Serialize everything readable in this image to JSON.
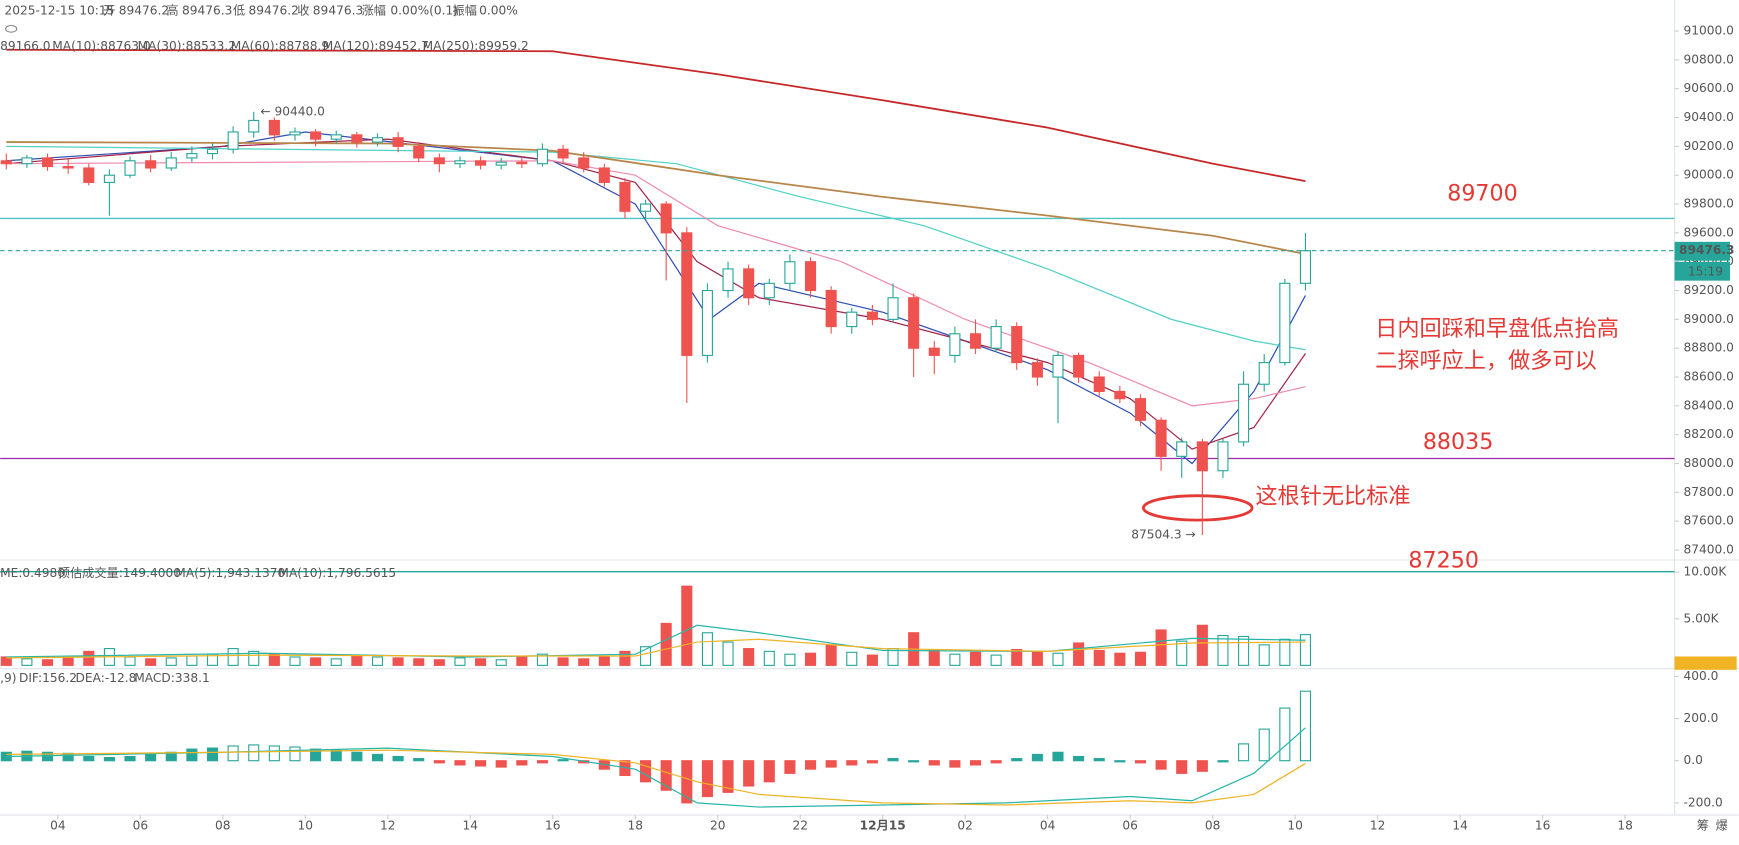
{
  "header": {
    "datetime": "2025-12-15 10:15",
    "fields": [
      {
        "label": "开",
        "value": "89476.2"
      },
      {
        "label": "高",
        "value": "89476.3"
      },
      {
        "label": "低",
        "value": "89476.2"
      },
      {
        "label": "收",
        "value": "89476.3"
      },
      {
        "label": "涨幅",
        "value": "0.00%(0.1)"
      },
      {
        "label": "振幅",
        "value": "0.00%"
      }
    ]
  },
  "notes": [
    "日内回踩和早盘低点抬高",
    "二探呼应上，做多可以",
    "这根针无比标准"
  ],
  "footer_icons": [
    "筹",
    "爆"
  ],
  "chart_data": [
    {
      "type": "candlestick",
      "x": [
        -1.25,
        -0.75,
        -0.25,
        0.25,
        0.75,
        1.25,
        1.75,
        2.25,
        2.75,
        3.25,
        3.75,
        4.25,
        4.75,
        5.25,
        5.75,
        6.25,
        6.75,
        7.25,
        7.75,
        8.25,
        8.75,
        9.25,
        9.75,
        10.25,
        10.75,
        11.25,
        11.75,
        12.25,
        12.75,
        13.25,
        13.75,
        14.25,
        14.75,
        15.25,
        15.75,
        16.25,
        16.75,
        17.25,
        17.75,
        18.25,
        18.75,
        19.25,
        19.75,
        20.25,
        20.75,
        21.25,
        21.75,
        22.25,
        22.75,
        23.25,
        23.75,
        24.25,
        24.75,
        25.25,
        25.75,
        26.25,
        26.75,
        27.25,
        27.75,
        28.25,
        28.75,
        29.25,
        29.75,
        30.25
      ],
      "ohlc": [
        [
          90100,
          90150,
          90040,
          90080
        ],
        [
          90080,
          90140,
          90050,
          90120
        ],
        [
          90120,
          90150,
          90030,
          90060
        ],
        [
          90060,
          90110,
          90010,
          90050
        ],
        [
          90050,
          90080,
          89930,
          89950
        ],
        [
          89950,
          90040,
          89720,
          90000
        ],
        [
          90000,
          90130,
          89980,
          90100
        ],
        [
          90100,
          90140,
          90020,
          90050
        ],
        [
          90050,
          90160,
          90030,
          90120
        ],
        [
          90120,
          90200,
          90090,
          90150
        ],
        [
          90150,
          90220,
          90110,
          90180
        ],
        [
          90180,
          90340,
          90150,
          90300
        ],
        [
          90300,
          90440,
          90260,
          90380
        ],
        [
          90380,
          90400,
          90240,
          90280
        ],
        [
          90280,
          90330,
          90240,
          90300
        ],
        [
          90300,
          90320,
          90200,
          90250
        ],
        [
          90250,
          90310,
          90220,
          90280
        ],
        [
          90280,
          90300,
          90190,
          90230
        ],
        [
          90230,
          90290,
          90200,
          90260
        ],
        [
          90260,
          90300,
          90160,
          90200
        ],
        [
          90200,
          90230,
          90090,
          90120
        ],
        [
          90120,
          90150,
          90020,
          90080
        ],
        [
          90080,
          90130,
          90050,
          90100
        ],
        [
          90100,
          90130,
          90040,
          90070
        ],
        [
          90070,
          90120,
          90040,
          90090
        ],
        [
          90090,
          90130,
          90050,
          90080
        ],
        [
          90080,
          90220,
          90060,
          90180
        ],
        [
          90180,
          90210,
          90090,
          90120
        ],
        [
          90120,
          90160,
          90020,
          90050
        ],
        [
          90050,
          90080,
          89920,
          89950
        ],
        [
          89950,
          89980,
          89700,
          89750
        ],
        [
          89750,
          89830,
          89700,
          89800
        ],
        [
          89800,
          89820,
          89270,
          89600
        ],
        [
          89600,
          89640,
          88420,
          88750
        ],
        [
          88750,
          89250,
          88700,
          89200
        ],
        [
          89200,
          89400,
          89150,
          89350
        ],
        [
          89350,
          89380,
          89100,
          89150
        ],
        [
          89150,
          89280,
          89100,
          89250
        ],
        [
          89250,
          89450,
          89200,
          89400
        ],
        [
          89400,
          89430,
          89150,
          89200
        ],
        [
          89200,
          89230,
          88900,
          88950
        ],
        [
          88950,
          89080,
          88900,
          89050
        ],
        [
          89050,
          89100,
          88960,
          89000
        ],
        [
          89000,
          89250,
          88980,
          89150
        ],
        [
          89150,
          89180,
          88600,
          88800
        ],
        [
          88800,
          88850,
          88620,
          88750
        ],
        [
          88750,
          88950,
          88700,
          88900
        ],
        [
          88900,
          89000,
          88760,
          88800
        ],
        [
          88800,
          89000,
          88770,
          88950
        ],
        [
          88950,
          88980,
          88650,
          88700
        ],
        [
          88700,
          88730,
          88540,
          88600
        ],
        [
          88600,
          88780,
          88280,
          88750
        ],
        [
          88750,
          88770,
          88560,
          88600
        ],
        [
          88600,
          88640,
          88470,
          88500
        ],
        [
          88500,
          88540,
          88420,
          88450
        ],
        [
          88450,
          88480,
          88260,
          88300
        ],
        [
          88300,
          88320,
          87950,
          88050
        ],
        [
          88050,
          88180,
          87900,
          88150
        ],
        [
          88150,
          88170,
          87504.3,
          87950
        ],
        [
          87950,
          88170,
          87900,
          88150
        ],
        [
          88150,
          88640,
          88120,
          88550
        ],
        [
          88550,
          88760,
          88500,
          88700
        ],
        [
          88700,
          89280,
          88680,
          89250
        ],
        [
          89250,
          89600,
          89200,
          89476.3
        ]
      ],
      "up_color": "#26a69a",
      "down_color": "#ef5350",
      "xlim": [
        -1.4,
        39.2
      ],
      "xticks": [
        {
          "value": 0,
          "label": "04"
        },
        {
          "value": 2,
          "label": "06"
        },
        {
          "value": 4,
          "label": "08"
        },
        {
          "value": 6,
          "label": "10"
        },
        {
          "value": 8,
          "label": "12"
        },
        {
          "value": 10,
          "label": "14"
        },
        {
          "value": 12,
          "label": "16"
        },
        {
          "value": 14,
          "label": "18"
        },
        {
          "value": 16,
          "label": "20"
        },
        {
          "value": 18,
          "label": "22"
        },
        {
          "value": 20,
          "label": "12月15"
        },
        {
          "value": 22,
          "label": "02"
        },
        {
          "value": 24,
          "label": "04"
        },
        {
          "value": 26,
          "label": "06"
        },
        {
          "value": 28,
          "label": "08"
        },
        {
          "value": 30,
          "label": "10"
        },
        {
          "value": 32,
          "label": "12"
        },
        {
          "value": 34,
          "label": "14"
        },
        {
          "value": 36,
          "label": "16"
        },
        {
          "value": 38,
          "label": "18"
        }
      ],
      "ylim": [
        87400,
        91000
      ],
      "yticks": [
        {
          "value": 91000,
          "label": "91000.0"
        },
        {
          "value": 90800,
          "label": "90800.0"
        },
        {
          "value": 90600,
          "label": "90600.0"
        },
        {
          "value": 90400,
          "label": "90400.0"
        },
        {
          "value": 90200,
          "label": "90200.0"
        },
        {
          "value": 90000,
          "label": "90000.0"
        },
        {
          "value": 89800,
          "label": "89800.0"
        },
        {
          "value": 89600,
          "label": "89600.0"
        },
        {
          "value": 89400,
          "label": "89400.0"
        },
        {
          "value": 89200,
          "label": "89200.0"
        },
        {
          "value": 89000,
          "label": "89000.0"
        },
        {
          "value": 88800,
          "label": "88800.0"
        },
        {
          "value": 88600,
          "label": "88600.0"
        },
        {
          "value": 88400,
          "label": "88400.0"
        },
        {
          "value": 88200,
          "label": "88200.0"
        },
        {
          "value": 88000,
          "label": "88000.0"
        },
        {
          "value": 87800,
          "label": "87800.0"
        },
        {
          "value": 87600,
          "label": "87600.0"
        },
        {
          "value": 87400,
          "label": "87400.0"
        }
      ],
      "series": [
        {
          "name": "89166.0",
          "color": "#2f4fb5",
          "x": [
            -1.25,
            4,
            6,
            12,
            14,
            15.8,
            17,
            20,
            22,
            24,
            26,
            27.5,
            29,
            30.25
          ],
          "values": [
            90100,
            90200,
            90300,
            90100,
            89800,
            89000,
            89250,
            89050,
            88850,
            88650,
            88350,
            88000,
            88500,
            89166
          ]
        },
        {
          "name": "MA(10):88763.0",
          "color": "#a3244a",
          "x": [
            -1.25,
            4,
            8,
            12,
            14,
            15.5,
            17,
            20,
            22,
            24,
            26,
            27.5,
            29,
            30.25
          ],
          "values": [
            90080,
            90200,
            90250,
            90100,
            89950,
            89400,
            89150,
            89000,
            88850,
            88700,
            88450,
            88100,
            88250,
            88763
          ]
        },
        {
          "name": "MA(30):88533.2",
          "color": "#f08bb0",
          "x": [
            -1.25,
            12,
            14,
            16,
            19,
            22,
            25,
            27.5,
            29,
            30.25
          ],
          "values": [
            90080,
            90100,
            90000,
            89650,
            89400,
            89000,
            88700,
            88400,
            88450,
            88533
          ]
        },
        {
          "name": "MA(60):88788.9",
          "color": "#4fd1c5",
          "x": [
            -1.25,
            12,
            15,
            18,
            21,
            24,
            27,
            29,
            30.25
          ],
          "values": [
            90200,
            90160,
            90080,
            89850,
            89650,
            89350,
            89000,
            88850,
            88789
          ]
        },
        {
          "name": "MA(120):89452.7",
          "color": "#b8864b",
          "x": [
            -1.25,
            8,
            12,
            16,
            20,
            24,
            28,
            30.25
          ],
          "values": [
            90230,
            90220,
            90170,
            90000,
            89850,
            89720,
            89580,
            89453
          ]
        },
        {
          "name": "MA(250):89959.2",
          "color": "#c62828",
          "x": [
            -1.25,
            12,
            16,
            20,
            24,
            28,
            30.25
          ],
          "values": [
            90870,
            90860,
            90700,
            90520,
            90330,
            90080,
            89959
          ]
        }
      ],
      "levels": [
        {
          "value": 89700,
          "color": "#4fc3c3"
        },
        {
          "value": 88035,
          "color": "#9c27b0"
        },
        {
          "value": 87250,
          "color": "#26a69a"
        }
      ],
      "last": {
        "value": 89476.3,
        "time": "15:19",
        "color": "#26a69a"
      },
      "extremes": [
        {
          "x": 4.75,
          "value": 90440,
          "label": "← 90440.0"
        },
        {
          "x": 27.75,
          "value": 87504.3,
          "label": "87504.3 →"
        }
      ]
    },
    {
      "type": "volume",
      "legend": [
        "ME:0.4980",
        "预估成交量:149.4000"
      ],
      "values": [
        900,
        700,
        600,
        800,
        1500,
        1800,
        900,
        700,
        800,
        1000,
        1200,
        1800,
        1500,
        1200,
        900,
        800,
        700,
        1000,
        900,
        800,
        700,
        600,
        800,
        700,
        600,
        900,
        1200,
        800,
        700,
        900,
        1500,
        2000,
        4500,
        8500,
        3500,
        2500,
        1800,
        1500,
        1200,
        1300,
        2200,
        1400,
        1100,
        1800,
        3500,
        1600,
        1200,
        1400,
        1100,
        1700,
        1500,
        1300,
        2400,
        1600,
        1300,
        1400,
        3800,
        2600,
        4300,
        3200,
        3100,
        2200,
        2800,
        3300
      ],
      "ylim": [
        0,
        10000
      ],
      "yticks": [
        {
          "value": 10000,
          "label": "10.00K"
        },
        {
          "value": 5000,
          "label": "5.00K"
        }
      ],
      "series": [
        {
          "name": "MA(5):1,943.1370",
          "color": "#26b5a8",
          "x": [
            -1.25,
            5,
            10,
            14,
            15.5,
            17,
            20,
            24,
            27.5,
            30.25
          ],
          "values": [
            900,
            1300,
            900,
            1200,
            4300,
            3500,
            1600,
            1500,
            2900,
            2700
          ]
        },
        {
          "name": "MA(10):1,796.5615",
          "color": "#f0b323",
          "x": [
            -1.25,
            5,
            10,
            14,
            15.5,
            17,
            20,
            24,
            27.5,
            30.25
          ],
          "values": [
            800,
            1100,
            1000,
            1000,
            2500,
            2800,
            1800,
            1500,
            2400,
            2500
          ]
        }
      ]
    },
    {
      "type": "macd",
      "legend": [
        ",9)"
      ],
      "values": [
        40,
        45,
        40,
        35,
        20,
        15,
        20,
        30,
        40,
        55,
        60,
        70,
        75,
        70,
        65,
        55,
        50,
        40,
        30,
        20,
        10,
        -10,
        -20,
        -25,
        -30,
        -20,
        -10,
        5,
        -10,
        -40,
        -70,
        -100,
        -140,
        -200,
        -170,
        -150,
        -120,
        -100,
        -60,
        -40,
        -30,
        -20,
        -10,
        10,
        0,
        -20,
        -30,
        -20,
        -10,
        10,
        30,
        40,
        20,
        10,
        0,
        -10,
        -40,
        -60,
        -50,
        0,
        80,
        150,
        250,
        330
      ],
      "value_label": "MACD:338.1",
      "ylim": [
        -200,
        400
      ],
      "yticks": [
        {
          "value": 400,
          "label": "400.0"
        },
        {
          "value": 200,
          "label": "200.0"
        },
        {
          "value": 0,
          "label": "0.0"
        },
        {
          "value": -200,
          "label": "-200.0"
        }
      ],
      "series": [
        {
          "name": "DIF:156.2",
          "color": "#26b5a8",
          "x": [
            -1.25,
            4,
            8,
            12,
            14,
            15.5,
            17,
            20,
            23,
            26,
            27.5,
            29,
            30.25
          ],
          "values": [
            20,
            40,
            60,
            20,
            -40,
            -200,
            -220,
            -210,
            -200,
            -170,
            -190,
            -60,
            156.2
          ]
        },
        {
          "name": "DEA:-12.8",
          "color": "#f0b323",
          "x": [
            -1.25,
            4,
            8,
            12,
            14,
            15.5,
            17,
            20,
            23,
            26,
            27.5,
            29,
            30.25
          ],
          "values": [
            30,
            40,
            50,
            30,
            -10,
            -100,
            -160,
            -200,
            -210,
            -190,
            -200,
            -160,
            -12.8
          ]
        }
      ]
    }
  ]
}
